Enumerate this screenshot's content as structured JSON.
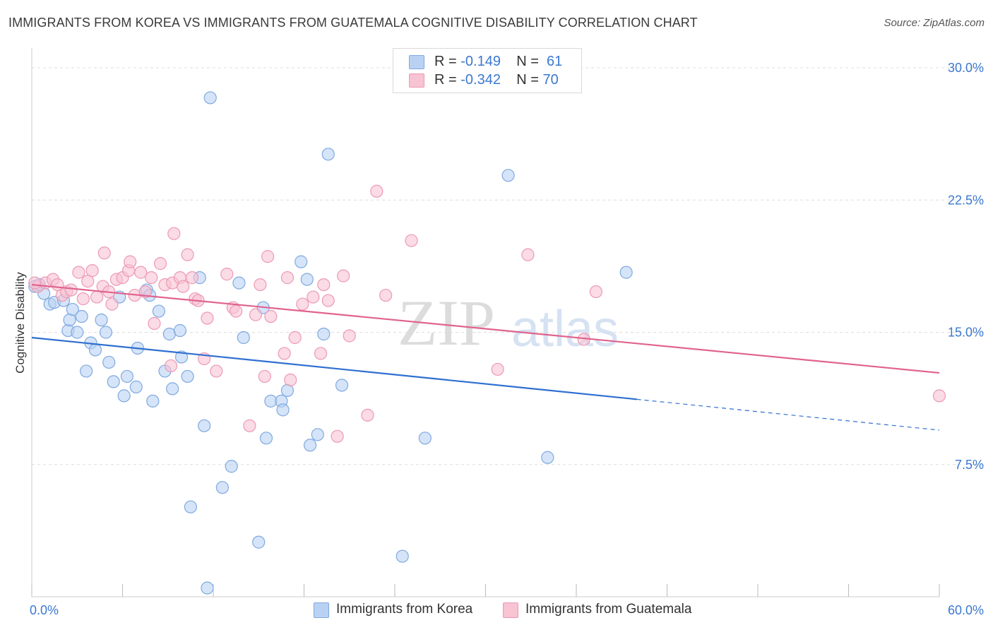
{
  "title": "IMMIGRANTS FROM KOREA VS IMMIGRANTS FROM GUATEMALA COGNITIVE DISABILITY CORRELATION CHART",
  "source": "Source: ZipAtlas.com",
  "watermark": {
    "zip": "ZIP",
    "atlas": "atlas"
  },
  "legend": {
    "korea": {
      "r_label": "R = ",
      "r_value": "-0.149",
      "n_label": "N = ",
      "n_value": "61"
    },
    "guatemala": {
      "r_label": "R = ",
      "r_value": "-0.342",
      "n_label": "N = ",
      "n_value": "70"
    }
  },
  "colors": {
    "korea_fill": "#b9d2f3",
    "korea_stroke": "#7fa9e0",
    "korea_line": "#2f6fd0",
    "guatemala_fill": "#f8c3d3",
    "guatemala_stroke": "#ec9ab4",
    "guatemala_line": "#e0638e",
    "tick_label": "#3b78d0",
    "grid": "#dddddd"
  },
  "chart_data": {
    "type": "scatter",
    "xlabel": "",
    "ylabel": "Cognitive Disability",
    "xlim": [
      0,
      60
    ],
    "ylim": [
      0,
      30
    ],
    "y_ticks": [
      7.5,
      15.0,
      22.5,
      30.0
    ],
    "y_tick_labels": [
      "7.5%",
      "15.0%",
      "22.5%",
      "30.0%"
    ],
    "x_tick_labels": {
      "min": "0.0%",
      "max": "60.0%"
    },
    "grid": true,
    "legend_placement": "top-center",
    "series": [
      {
        "name": "Immigrants from Korea",
        "r": -0.149,
        "n": 61,
        "trend": {
          "x0": 0,
          "y0": 14.7,
          "x1": 40,
          "y1": 11.2,
          "solid_until": 40,
          "x_end": 60,
          "y_end": 9.45
        },
        "points": [
          [
            0.2,
            17.6
          ],
          [
            0.8,
            17.2
          ],
          [
            1.2,
            16.6
          ],
          [
            1.5,
            16.7
          ],
          [
            2.1,
            16.8
          ],
          [
            2.4,
            15.1
          ],
          [
            2.5,
            15.7
          ],
          [
            2.7,
            16.3
          ],
          [
            3.0,
            15.0
          ],
          [
            3.3,
            15.9
          ],
          [
            3.6,
            12.8
          ],
          [
            3.9,
            14.4
          ],
          [
            4.2,
            14.0
          ],
          [
            4.6,
            15.7
          ],
          [
            4.9,
            15.0
          ],
          [
            5.1,
            13.3
          ],
          [
            5.4,
            12.2
          ],
          [
            5.8,
            17.0
          ],
          [
            6.1,
            11.4
          ],
          [
            6.3,
            12.5
          ],
          [
            6.9,
            11.9
          ],
          [
            7.0,
            14.1
          ],
          [
            7.6,
            17.4
          ],
          [
            7.8,
            17.1
          ],
          [
            8.0,
            11.1
          ],
          [
            8.4,
            16.2
          ],
          [
            8.8,
            12.8
          ],
          [
            9.1,
            14.9
          ],
          [
            9.3,
            11.8
          ],
          [
            9.8,
            15.1
          ],
          [
            9.9,
            13.6
          ],
          [
            10.3,
            12.5
          ],
          [
            10.5,
            5.1
          ],
          [
            11.1,
            18.1
          ],
          [
            11.4,
            9.7
          ],
          [
            11.6,
            0.5
          ],
          [
            11.8,
            28.3
          ],
          [
            12.6,
            6.2
          ],
          [
            13.2,
            7.4
          ],
          [
            13.7,
            17.8
          ],
          [
            14.0,
            14.7
          ],
          [
            15.0,
            3.1
          ],
          [
            15.3,
            16.4
          ],
          [
            15.5,
            9.0
          ],
          [
            15.8,
            11.1
          ],
          [
            16.5,
            11.1
          ],
          [
            16.6,
            10.6
          ],
          [
            16.9,
            11.7
          ],
          [
            17.8,
            19.0
          ],
          [
            18.2,
            18.0
          ],
          [
            18.4,
            8.6
          ],
          [
            18.9,
            9.2
          ],
          [
            19.3,
            14.9
          ],
          [
            19.6,
            25.1
          ],
          [
            20.5,
            12.0
          ],
          [
            24.5,
            2.3
          ],
          [
            26.0,
            9.0
          ],
          [
            31.5,
            23.9
          ],
          [
            34.1,
            7.9
          ],
          [
            39.3,
            18.4
          ],
          [
            0.5,
            17.7
          ]
        ]
      },
      {
        "name": "Immigrants from Guatemala",
        "r": -0.342,
        "n": 70,
        "trend": {
          "x0": 0,
          "y0": 17.7,
          "x1": 60,
          "y1": 12.7,
          "solid_until": 60,
          "x_end": 60,
          "y_end": 12.7
        },
        "points": [
          [
            0.4,
            17.6
          ],
          [
            0.9,
            17.8
          ],
          [
            1.4,
            18.0
          ],
          [
            1.7,
            17.7
          ],
          [
            2.0,
            17.1
          ],
          [
            2.3,
            17.3
          ],
          [
            2.6,
            17.4
          ],
          [
            3.1,
            18.4
          ],
          [
            3.4,
            16.9
          ],
          [
            3.7,
            17.9
          ],
          [
            4.0,
            18.5
          ],
          [
            4.3,
            17.0
          ],
          [
            4.7,
            17.6
          ],
          [
            4.8,
            19.5
          ],
          [
            5.1,
            17.3
          ],
          [
            5.3,
            16.6
          ],
          [
            5.6,
            18.0
          ],
          [
            6.0,
            18.1
          ],
          [
            6.4,
            18.5
          ],
          [
            6.5,
            19.0
          ],
          [
            6.8,
            17.1
          ],
          [
            7.2,
            18.4
          ],
          [
            7.5,
            17.3
          ],
          [
            7.9,
            18.1
          ],
          [
            8.1,
            15.5
          ],
          [
            8.5,
            18.9
          ],
          [
            8.8,
            17.7
          ],
          [
            9.2,
            13.1
          ],
          [
            9.3,
            17.8
          ],
          [
            9.4,
            20.6
          ],
          [
            9.8,
            18.1
          ],
          [
            10.0,
            17.6
          ],
          [
            10.3,
            19.4
          ],
          [
            10.6,
            18.1
          ],
          [
            10.8,
            16.9
          ],
          [
            11.0,
            16.8
          ],
          [
            11.4,
            13.5
          ],
          [
            11.6,
            15.8
          ],
          [
            12.2,
            12.8
          ],
          [
            12.9,
            18.3
          ],
          [
            13.3,
            16.4
          ],
          [
            13.5,
            16.2
          ],
          [
            14.4,
            9.7
          ],
          [
            14.8,
            16.0
          ],
          [
            15.1,
            17.7
          ],
          [
            15.4,
            12.5
          ],
          [
            15.6,
            19.3
          ],
          [
            15.8,
            15.9
          ],
          [
            16.7,
            13.8
          ],
          [
            16.9,
            18.1
          ],
          [
            17.1,
            12.3
          ],
          [
            17.4,
            14.7
          ],
          [
            17.9,
            16.6
          ],
          [
            18.6,
            17.0
          ],
          [
            19.1,
            13.8
          ],
          [
            19.3,
            17.7
          ],
          [
            19.6,
            16.8
          ],
          [
            20.2,
            9.1
          ],
          [
            20.6,
            18.2
          ],
          [
            21.0,
            14.8
          ],
          [
            22.2,
            10.3
          ],
          [
            22.8,
            23.0
          ],
          [
            23.4,
            17.1
          ],
          [
            25.1,
            20.2
          ],
          [
            30.8,
            12.9
          ],
          [
            32.8,
            19.4
          ],
          [
            36.5,
            14.6
          ],
          [
            37.3,
            17.3
          ],
          [
            60.0,
            11.4
          ],
          [
            0.2,
            17.8
          ]
        ]
      }
    ]
  },
  "bottom_legend": {
    "korea": "Immigrants from Korea",
    "guatemala": "Immigrants from Guatemala"
  }
}
